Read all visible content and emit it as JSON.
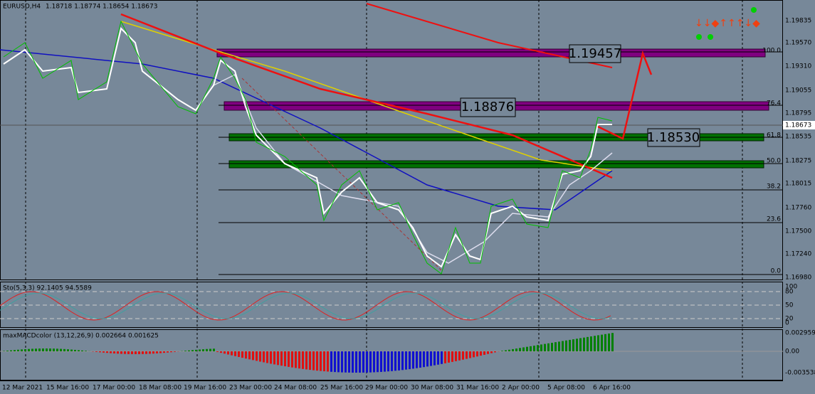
{
  "header": {
    "symbol": "EURUSD,H4",
    "quote": "1.18718 1.18774 1.18654 1.18673"
  },
  "price_axis": [
    "1.19835",
    "1.19570",
    "1.19310",
    "1.19055",
    "1.18795",
    "1.18535",
    "1.18275",
    "1.18015",
    "1.17760",
    "1.17500",
    "1.17240",
    "1.16980"
  ],
  "current_price": "1.18673",
  "fib_levels": [
    "100.0",
    "76.4",
    "61.8",
    "50.0",
    "38.2",
    "23.6",
    "0.0"
  ],
  "price_boxes": [
    "1.19457",
    "1.18876",
    "1.18530"
  ],
  "stochastic": {
    "label": "Sto(5,3,3) 92.1405 94.5589",
    "axis": [
      "100",
      "80",
      "50",
      "20",
      "0"
    ]
  },
  "macd": {
    "label": "maxMACDcolor (13,12,26,9) 0.002664 0.001625",
    "axis": [
      "0.002959",
      "0.00",
      "-0.003538"
    ]
  },
  "time_axis": [
    "12 Mar 2021",
    "15 Mar 16:00",
    "17 Mar 00:00",
    "18 Mar 08:00",
    "19 Mar 16:00",
    "23 Mar 00:00",
    "24 Mar 08:00",
    "25 Mar 16:00",
    "29 Mar 00:00",
    "30 Mar 08:00",
    "31 Mar 16:00",
    "2 Apr 00:00",
    "5 Apr 08:00",
    "6 Apr 16:00"
  ]
}
